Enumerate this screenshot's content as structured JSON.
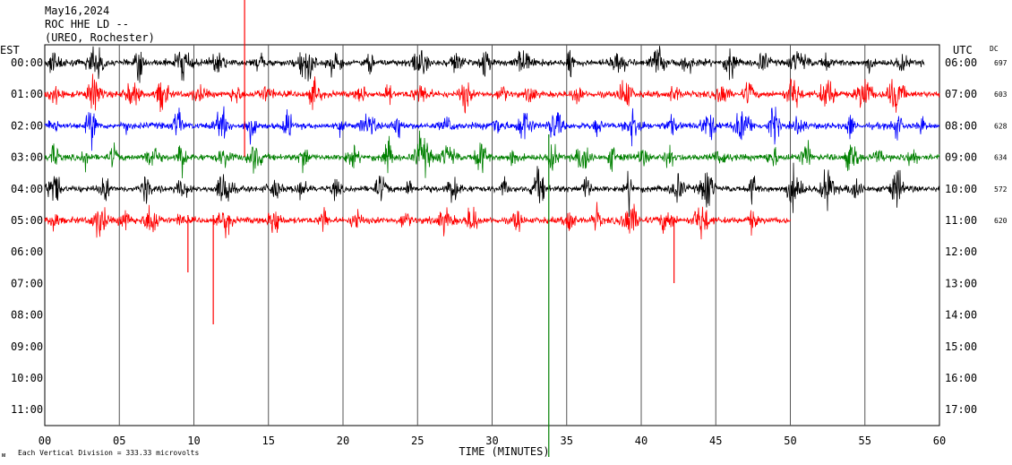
{
  "header": {
    "date": "May16,2024",
    "station": "ROC HHE LD --",
    "location": "(UREO, Rochester)"
  },
  "chart_data": {
    "type": "line",
    "title": "",
    "left_axis_label": "EST",
    "right_axis_label": "UTC",
    "dc_label": "DC",
    "xlabel": "TIME (MINUTES)",
    "x_ticks": [
      "00",
      "05",
      "10",
      "15",
      "20",
      "25",
      "30",
      "35",
      "40",
      "45",
      "50",
      "55",
      "60"
    ],
    "xlim": [
      0,
      60
    ],
    "grid": "vertical every 5 minutes",
    "left_hours": [
      "00:00",
      "01:00",
      "02:00",
      "03:00",
      "04:00",
      "05:00",
      "06:00",
      "07:00",
      "08:00",
      "09:00",
      "10:00",
      "11:00"
    ],
    "right_hours": [
      "06:00",
      "07:00",
      "08:00",
      "09:00",
      "10:00",
      "11:00",
      "12:00",
      "13:00",
      "14:00",
      "15:00",
      "16:00",
      "17:00"
    ],
    "footer_note": "Each Vertical Division =  333.33 microvolts",
    "footer_mark": "ᴍ",
    "series": [
      {
        "hour_index": 0,
        "color": "#000000",
        "dc": "697",
        "end_minute": 59
      },
      {
        "hour_index": 1,
        "color": "#ff0000",
        "dc": "603",
        "end_minute": 60
      },
      {
        "hour_index": 2,
        "color": "#0000ff",
        "dc": "628",
        "end_minute": 60
      },
      {
        "hour_index": 3,
        "color": "#008000",
        "dc": "634",
        "end_minute": 60
      },
      {
        "hour_index": 4,
        "color": "#000000",
        "dc": "572",
        "end_minute": 60
      },
      {
        "hour_index": 5,
        "color": "#ff0000",
        "dc": "620",
        "end_minute": 50
      }
    ]
  }
}
